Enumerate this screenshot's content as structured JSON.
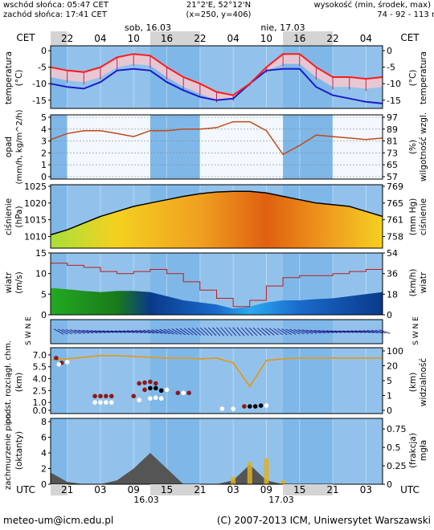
{
  "header": {
    "sunrise": "wschód słońca: 05:47 CET",
    "sunset": "zachód słońca: 17:41 CET",
    "coords": "21°2'E, 52°12'N",
    "grid": "(x=250,  y=406)",
    "altitude_label": "wysokość (min, środek, max)",
    "altitude_values": "74 - 92 - 113 m",
    "tz_left": "CET",
    "tz_right": "CET",
    "day1": "sob, 16.03",
    "day2": "nie, 17.03",
    "hour_ticks": [
      "22",
      "04",
      "10",
      "16",
      "22",
      "04",
      "10",
      "16",
      "22",
      "04"
    ]
  },
  "footer": {
    "utc_left": "UTC",
    "utc_right": "UTC",
    "hour_ticks": [
      "21",
      "03",
      "09",
      "15",
      "21",
      "03",
      "09",
      "15",
      "21",
      "03"
    ],
    "date1": "16.03",
    "date2": "17.03",
    "email": "meteo-um@icm.edu.pl",
    "copyright": "(C) 2007-2013 ICM, Uniwersytet Warszawski"
  },
  "colors": {
    "night_band": "#d4d4d4",
    "plot_bg": "#7fb8e8",
    "temp": "#ff1a1a",
    "dew": "#1a1acc",
    "precip_line": "#c04a1a",
    "pressure_line": "#000000",
    "wind_line": "#c01a1a"
  },
  "chart_data": [
    {
      "type": "line",
      "panel": "temperature",
      "ylabel_left": "temperatura (°C)",
      "ylabel_right": "temperatura (°C)",
      "ylim": [
        -17,
        1
      ],
      "yticks": [
        "0",
        "-5",
        "-10",
        "-15"
      ],
      "x_hours_utc": [
        18,
        21,
        24,
        27,
        30,
        33,
        36,
        39,
        42,
        45,
        48,
        51,
        54,
        57,
        60,
        63,
        66,
        69,
        72,
        75,
        78
      ],
      "series": [
        {
          "values": [
            -5,
            -6,
            -6.5,
            -5,
            -2,
            -1,
            -1.5,
            -5,
            -8,
            -10,
            -12.5,
            -13.5,
            -10,
            -5,
            -1,
            -1,
            -5,
            -8,
            -8,
            -8.5,
            -8
          ]
        },
        {
          "values": [
            -10,
            -11,
            -11.5,
            -9.5,
            -6,
            -5.5,
            -6,
            -9.5,
            -12,
            -14,
            -15,
            -14.5,
            -10,
            -6,
            -5.5,
            -5.5,
            -11,
            -13.5,
            -14.5,
            -15.5,
            -16
          ]
        }
      ]
    },
    {
      "type": "line",
      "panel": "precipitation-humidity",
      "ylabel_left": "opad (mm/h, kg/m^2/h)",
      "ylabel_right": "wilgotność wzgl. (%)",
      "yticks_left": [
        "5",
        "4",
        "3",
        "2",
        "1",
        "0"
      ],
      "yticks_right": [
        "97",
        "89",
        "81",
        "73",
        "65",
        "57"
      ],
      "ylim_right": [
        57,
        97
      ],
      "x_hours_utc": [
        18,
        21,
        24,
        27,
        30,
        33,
        36,
        39,
        42,
        45,
        48,
        51,
        54,
        57,
        60,
        63,
        66,
        69,
        72,
        75,
        78
      ],
      "series": [
        {
          "values": [
            82,
            86,
            88,
            88,
            86,
            84,
            88,
            88,
            89,
            89,
            90,
            94,
            94,
            88,
            72,
            78,
            85,
            84,
            83,
            82,
            83
          ]
        }
      ]
    },
    {
      "type": "area",
      "panel": "pressure",
      "ylabel_left": "ciśnienie (hPa)",
      "ylabel_right": "ciśnienie (mm Hg)",
      "ylim": [
        1007,
        1025
      ],
      "yticks_left": [
        "1025",
        "1020",
        "1015",
        "1010"
      ],
      "yticks_right": [
        "769",
        "765",
        "761",
        "758"
      ],
      "x_hours_utc": [
        18,
        21,
        24,
        27,
        30,
        33,
        36,
        39,
        42,
        45,
        48,
        51,
        54,
        57,
        60,
        63,
        66,
        69,
        72,
        75,
        78
      ],
      "series": [
        {
          "values": [
            1010.5,
            1012,
            1014,
            1016,
            1017.5,
            1019,
            1020,
            1021,
            1022,
            1022.8,
            1023.3,
            1023.5,
            1023.5,
            1023,
            1022,
            1021,
            1020,
            1019.5,
            1019,
            1017.5,
            1016
          ]
        }
      ]
    },
    {
      "type": "area",
      "panel": "wind",
      "ylabel_left": "wiatr (m/s)",
      "ylabel_right": "wiatr (km/h)",
      "ylim": [
        0,
        15
      ],
      "yticks_left": [
        "15",
        "10",
        "5",
        "0"
      ],
      "yticks_right": [
        "54",
        "36",
        "18",
        "0"
      ],
      "x_hours_utc": [
        18,
        21,
        24,
        27,
        30,
        33,
        36,
        39,
        42,
        45,
        48,
        51,
        54,
        57,
        60,
        63,
        66,
        69,
        72,
        75,
        78
      ],
      "series": [
        {
          "values": [
            6.5,
            6.2,
            5.8,
            5.5,
            5.8,
            5.8,
            5.5,
            4.5,
            3.5,
            3,
            2.5,
            1.5,
            2,
            3,
            3.5,
            3.5,
            3.8,
            4,
            4.5,
            5,
            5.5
          ]
        },
        {
          "values": [
            12.5,
            12,
            11.5,
            10.5,
            10,
            10.5,
            11,
            10,
            8,
            6,
            4,
            2,
            3.5,
            7,
            9,
            9.5,
            9.5,
            10,
            10.5,
            11,
            11.5
          ]
        }
      ]
    },
    {
      "type": "scatter",
      "panel": "wind-direction",
      "ylabel_left": "S W N E",
      "ylabel_right": "S W N E"
    },
    {
      "type": "line",
      "panel": "cloud-base-visibility",
      "ylabel_left": "rozciągł. chm. (km)",
      "ylabel_right": "widzialność (km)",
      "yticks_left": [
        "7.0",
        "5.5",
        "4.0",
        "2.5",
        "1.0",
        "0.0"
      ],
      "yticks_right": [
        "100",
        "20",
        "5",
        "1",
        "0"
      ],
      "x_hours_utc": [
        18,
        21,
        24,
        27,
        30,
        33,
        36,
        39,
        42,
        45,
        48,
        51,
        54,
        57,
        60,
        63,
        66,
        69,
        72,
        75,
        78
      ],
      "series": [
        {
          "values": [
            6.4,
            6.5,
            6.7,
            6.9,
            6.9,
            6.8,
            6.7,
            6.6,
            6.6,
            6.5,
            6.6,
            6.0,
            3.0,
            6.3,
            6.5,
            6.6,
            6.6,
            6.6,
            6.6,
            6.6,
            6.6
          ]
        }
      ]
    },
    {
      "type": "area",
      "panel": "cloud-cover-fog",
      "ylabel_left": "zachmurzenie pion. (oktanty)",
      "ylabel_right": "mgła (frakcja)",
      "yticks_left": [
        "8",
        "6",
        "4",
        "2",
        "0"
      ],
      "yticks_right": [
        "0.75",
        "0.5",
        "0.25",
        "0"
      ],
      "x_hours_utc": [
        18,
        21,
        24,
        27,
        30,
        33,
        36,
        39,
        42,
        45,
        48,
        51,
        54,
        57,
        60,
        63,
        66,
        69,
        72,
        75,
        78
      ],
      "series": [
        {
          "values": [
            1.5,
            0.3,
            0,
            0,
            0.5,
            2,
            4,
            2,
            0,
            0,
            0,
            0.5,
            2.5,
            0.5,
            0,
            0,
            0,
            0,
            0,
            0,
            0
          ]
        },
        {
          "values": [
            0,
            0,
            0,
            0,
            0,
            0,
            0,
            0,
            0,
            0,
            0,
            0.1,
            0.3,
            0.35,
            0.05,
            0,
            0,
            0,
            0,
            0,
            0
          ]
        }
      ]
    }
  ]
}
